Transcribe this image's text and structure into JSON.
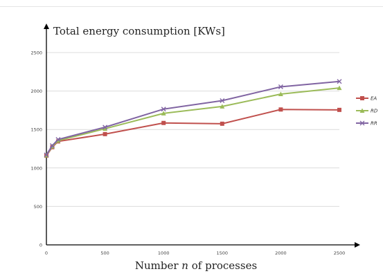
{
  "chart_data": {
    "type": "line",
    "ylabel": "Total energy consumption [KWs]",
    "xlabel": {
      "prefix": "Number ",
      "var": "n",
      "suffix": " of processes"
    },
    "x": [
      0,
      50,
      100,
      500,
      1000,
      1500,
      2000,
      2500
    ],
    "xticks": [
      0,
      500,
      1000,
      1500,
      2000,
      2500
    ],
    "yticks": [
      0,
      500,
      1000,
      1500,
      2000,
      2500
    ],
    "xlim": [
      0,
      2500
    ],
    "ylim": [
      0,
      2500
    ],
    "grid": "horizontal",
    "legend_position": "right",
    "series": [
      {
        "name": "EA",
        "color": "#c0504d",
        "marker": "square",
        "values": [
          1160,
          1270,
          1345,
          1440,
          1585,
          1575,
          1760,
          1755
        ]
      },
      {
        "name": "RD",
        "color": "#9bbb59",
        "marker": "triangle",
        "values": [
          1165,
          1280,
          1355,
          1510,
          1710,
          1800,
          1960,
          2040
        ]
      },
      {
        "name": "RR",
        "color": "#8064a2",
        "marker": "x",
        "values": [
          1170,
          1290,
          1370,
          1530,
          1765,
          1875,
          2055,
          2125
        ]
      }
    ]
  }
}
